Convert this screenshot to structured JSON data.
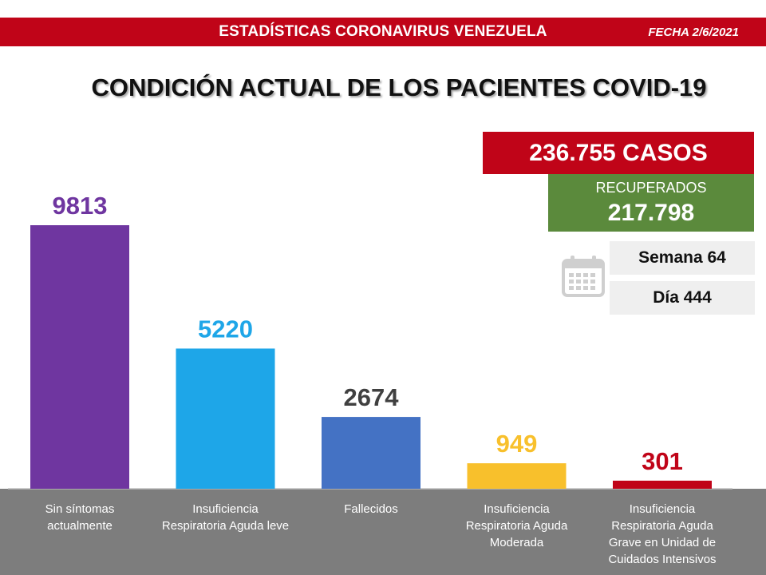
{
  "header": {
    "title": "ESTADÍSTICAS CORONAVIRUS VENEZUELA",
    "date": "FECHA 2/6/2021",
    "main_title": "CONDICIÓN ACTUAL DE LOS PACIENTES COVID-19"
  },
  "summary": {
    "cases": "236.755 CASOS",
    "recovered_label": "RECUPERADOS",
    "recovered_value": "217.798",
    "week": "Semana 64",
    "day": "Día 444",
    "calendar_icon": "calendar-icon"
  },
  "colors": {
    "header_red": "#c00418",
    "recovered_green": "#5b8a3c",
    "bottom_band": "#7d7d7d"
  },
  "chart_data": {
    "type": "bar",
    "categories": [
      [
        "Sin síntomas",
        "actualmente"
      ],
      [
        "Insuficiencia",
        "Respiratoria Aguda leve"
      ],
      [
        "Fallecidos"
      ],
      [
        "Insuficiencia",
        "Respiratoria Aguda",
        "Moderada"
      ],
      [
        "Insuficiencia",
        "Respiratoria Aguda",
        "Grave en Unidad de",
        "Cuidados Intensivos"
      ]
    ],
    "values": [
      9813,
      5220,
      2674,
      949,
      301
    ],
    "bar_colors": [
      "#6f36a0",
      "#1ea6e8",
      "#4472c4",
      "#f8c02c",
      "#c00418"
    ],
    "label_colors": [
      "#6f36a0",
      "#1ea6e8",
      "#404040",
      "#f8c02c",
      "#c00418"
    ],
    "ylim": [
      0,
      9813
    ],
    "grid": false
  }
}
